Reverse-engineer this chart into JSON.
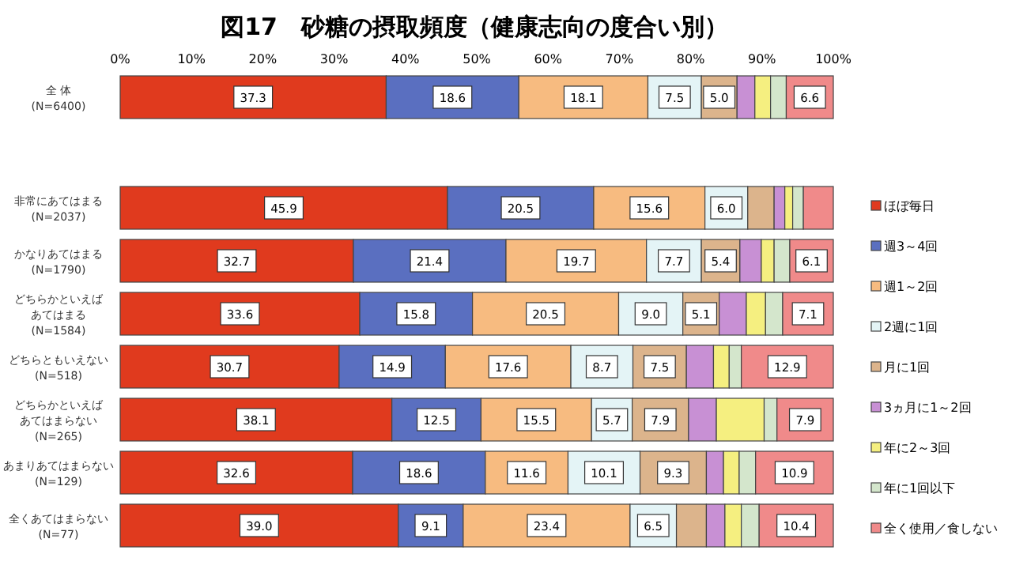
{
  "chart_data": {
    "type": "bar",
    "orientation": "horizontal",
    "stacked": true,
    "title": "図17　砂糖の摂取頻度（健康志向の度合い別）",
    "categories": [
      "全 体\n(N=6400)",
      "非常にあてはまる\n(N=2037)",
      "かなりあてはまる\n(N=1790)",
      "どちらかといえばあてはまる\n(N=1584)",
      "どちらともいえない\n(N=518)",
      "どちらかといえばあてはまらない\n(N=265)",
      "あまりあてはまらない\n(N=129)",
      "全くあてはまらない\n(N=77)"
    ],
    "xlim": [
      0,
      100
    ],
    "xticks": [
      {
        "value": 0,
        "label": "0%"
      },
      {
        "value": 10,
        "label": "10%"
      },
      {
        "value": 20,
        "label": "20%"
      },
      {
        "value": 30,
        "label": "30%"
      },
      {
        "value": 40,
        "label": "40%"
      },
      {
        "value": 50,
        "label": "50%"
      },
      {
        "value": 60,
        "label": "60%"
      },
      {
        "value": 70,
        "label": "70%"
      },
      {
        "value": 80,
        "label": "80%"
      },
      {
        "value": 90,
        "label": "90%"
      },
      {
        "value": 100,
        "label": "100%"
      }
    ],
    "legend": "right",
    "grid": false,
    "series": [
      {
        "name": "ほぼ毎日",
        "color": "#e03a1e",
        "values": [
          37.3,
          45.9,
          32.7,
          33.6,
          30.7,
          38.1,
          32.6,
          39.0
        ],
        "value_labels": [
          "37.3",
          "45.9",
          "32.7",
          "33.6",
          "30.7",
          "38.1",
          "32.6",
          "39.0"
        ]
      },
      {
        "name": "週3～4回",
        "color": "#5a6fc0",
        "values": [
          18.6,
          20.5,
          21.4,
          15.8,
          14.9,
          12.5,
          18.6,
          9.1
        ],
        "value_labels": [
          "18.6",
          "20.5",
          "21.4",
          "15.8",
          "14.9",
          "12.5",
          "18.6",
          "9.1"
        ]
      },
      {
        "name": "週1～2回",
        "color": "#f7bb80",
        "values": [
          18.1,
          15.6,
          19.7,
          20.5,
          17.6,
          15.5,
          11.6,
          23.4
        ],
        "value_labels": [
          "18.1",
          "15.6",
          "19.7",
          "20.5",
          "17.6",
          "15.5",
          "11.6",
          "23.4"
        ]
      },
      {
        "name": "2週に1回",
        "color": "#e4f4f6",
        "values": [
          7.5,
          6.0,
          7.7,
          9.0,
          8.7,
          5.7,
          10.1,
          6.5
        ],
        "value_labels": [
          "7.5",
          "6.0",
          "7.7",
          "9.0",
          "8.7",
          "5.7",
          "10.1",
          "6.5"
        ]
      },
      {
        "name": "月に1回",
        "color": "#dcb48c",
        "values": [
          5.0,
          3.7,
          5.4,
          5.1,
          7.5,
          7.9,
          9.3,
          4.2
        ],
        "value_labels": [
          "5.0",
          null,
          "5.4",
          "5.1",
          "7.5",
          "7.9",
          "9.3",
          null
        ]
      },
      {
        "name": "3ヵ月に1～2回",
        "color": "#c890d4",
        "values": [
          2.5,
          1.5,
          3.0,
          3.8,
          3.8,
          3.9,
          2.4,
          2.6
        ],
        "value_labels": [
          null,
          null,
          null,
          null,
          null,
          null,
          null,
          null
        ]
      },
      {
        "name": "年に2～3回",
        "color": "#f5ef80",
        "values": [
          2.2,
          1.1,
          1.8,
          2.7,
          2.2,
          6.7,
          2.2,
          2.3
        ],
        "value_labels": [
          null,
          null,
          null,
          null,
          null,
          null,
          null,
          null
        ]
      },
      {
        "name": "年に1回以下",
        "color": "#d4e6cc",
        "values": [
          2.2,
          1.5,
          2.2,
          2.4,
          1.7,
          1.8,
          2.3,
          2.5
        ],
        "value_labels": [
          null,
          null,
          null,
          null,
          null,
          null,
          null,
          null
        ]
      },
      {
        "name": "全く使用／食しない",
        "color": "#f08a8a",
        "values": [
          6.6,
          4.2,
          6.1,
          7.1,
          12.9,
          7.9,
          10.9,
          10.4
        ],
        "value_labels": [
          "6.6",
          null,
          "6.1",
          "7.1",
          "12.9",
          "7.9",
          "10.9",
          "10.4"
        ]
      }
    ]
  }
}
